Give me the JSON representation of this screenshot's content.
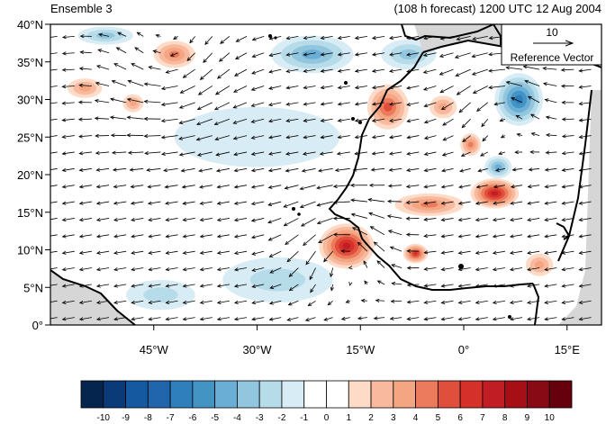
{
  "chart_data": {
    "type": "heatmap",
    "title_left": "Ensemble 3",
    "title_right": "(108 h forecast) 1200 UTC 12 Aug 2004",
    "x_ticks": [
      {
        "lon": -45,
        "label": "45°W"
      },
      {
        "lon": -30,
        "label": "30°W"
      },
      {
        "lon": -15,
        "label": "15°W"
      },
      {
        "lon": 0,
        "label": "0°"
      },
      {
        "lon": 15,
        "label": "15°E"
      }
    ],
    "y_ticks": [
      {
        "lat": 0,
        "label": "0°"
      },
      {
        "lat": 5,
        "label": "5°N"
      },
      {
        "lat": 10,
        "label": "10°N"
      },
      {
        "lat": 15,
        "label": "15°N"
      },
      {
        "lat": 20,
        "label": "20°N"
      },
      {
        "lat": 25,
        "label": "25°N"
      },
      {
        "lat": 30,
        "label": "30°N"
      },
      {
        "lat": 35,
        "label": "35°N"
      },
      {
        "lat": 40,
        "label": "40°N"
      }
    ],
    "xlim": [
      -60,
      20
    ],
    "ylim": [
      0,
      40
    ],
    "reference_vector": {
      "magnitude_label": "10",
      "label": "Reference Vector"
    },
    "colorbar": {
      "labels": [
        "-10",
        "-9",
        "-8",
        "-7",
        "-6",
        "-5",
        "-4",
        "-3",
        "-2",
        "-1",
        "0",
        "1",
        "2",
        "3",
        "4",
        "5",
        "6",
        "7",
        "8",
        "9",
        "10"
      ],
      "colors": [
        "#05254f",
        "#0a3a78",
        "#1559a0",
        "#2166ac",
        "#2f7fbd",
        "#4393c3",
        "#6aaed6",
        "#92c5de",
        "#b6dbe9",
        "#d8ecf5",
        "#ffffff",
        "#ffffff",
        "#fddbc7",
        "#f9b99f",
        "#f4a582",
        "#ec7a5c",
        "#e04f3b",
        "#d6302a",
        "#c01d24",
        "#a50f15",
        "#870a14",
        "#67000d"
      ]
    },
    "anomaly_blobs": [
      {
        "lon": -17,
        "lat": 10.5,
        "value": 7,
        "r_lon": 4,
        "r_lat": 3
      },
      {
        "lon": -7,
        "lat": 9.5,
        "value": 6,
        "r_lon": 1.8,
        "r_lat": 1.3
      },
      {
        "lon": 4.5,
        "lat": 17.5,
        "value": 7,
        "r_lon": 3.5,
        "r_lat": 2
      },
      {
        "lon": -11,
        "lat": 29,
        "value": 5,
        "r_lon": 3,
        "r_lat": 3
      },
      {
        "lon": -42,
        "lat": 36,
        "value": 4,
        "r_lon": 3,
        "r_lat": 1.8
      },
      {
        "lon": -55,
        "lat": 31.5,
        "value": 3,
        "r_lon": 2.5,
        "r_lat": 1.3
      },
      {
        "lon": -48,
        "lat": 29.5,
        "value": 3,
        "r_lon": 1.5,
        "r_lat": 1.2
      },
      {
        "lon": -5,
        "lat": 16,
        "value": 4,
        "r_lon": 5,
        "r_lat": 1.5
      },
      {
        "lon": 1,
        "lat": 24,
        "value": 4,
        "r_lon": 1.5,
        "r_lat": 1.5
      },
      {
        "lon": -3,
        "lat": 29,
        "value": 3,
        "r_lon": 2,
        "r_lat": 1.5
      },
      {
        "lon": 11,
        "lat": 8,
        "value": 3,
        "r_lon": 2,
        "r_lat": 1.5
      },
      {
        "lon": 8,
        "lat": 30,
        "value": -6,
        "r_lon": 3.5,
        "r_lat": 3.5
      },
      {
        "lon": -22,
        "lat": 36,
        "value": -4,
        "r_lon": 6,
        "r_lat": 2.5
      },
      {
        "lon": 5,
        "lat": 21,
        "value": -4,
        "r_lon": 2,
        "r_lat": 1.5
      },
      {
        "lon": -52,
        "lat": 38.5,
        "value": -3,
        "r_lon": 4,
        "r_lat": 1.2
      },
      {
        "lon": -8,
        "lat": 36,
        "value": -3,
        "r_lon": 4,
        "r_lat": 2
      },
      {
        "lon": -27,
        "lat": 6,
        "value": -2,
        "r_lon": 8,
        "r_lat": 3
      },
      {
        "lon": -44,
        "lat": 4,
        "value": -2,
        "r_lon": 5,
        "r_lat": 2
      },
      {
        "lon": -30,
        "lat": 25,
        "value": -1,
        "r_lon": 12,
        "r_lat": 4
      }
    ],
    "wind_field": {
      "background": {
        "u": -6,
        "v": -1
      },
      "vortices": [
        {
          "lon": -17,
          "lat": 10.5,
          "strength": 6,
          "radius": 6
        },
        {
          "lon": 6,
          "lat": 30,
          "strength": 4,
          "radius": 6
        },
        {
          "lon": -42,
          "lat": 34,
          "strength": -3,
          "radius": 8
        }
      ]
    }
  }
}
